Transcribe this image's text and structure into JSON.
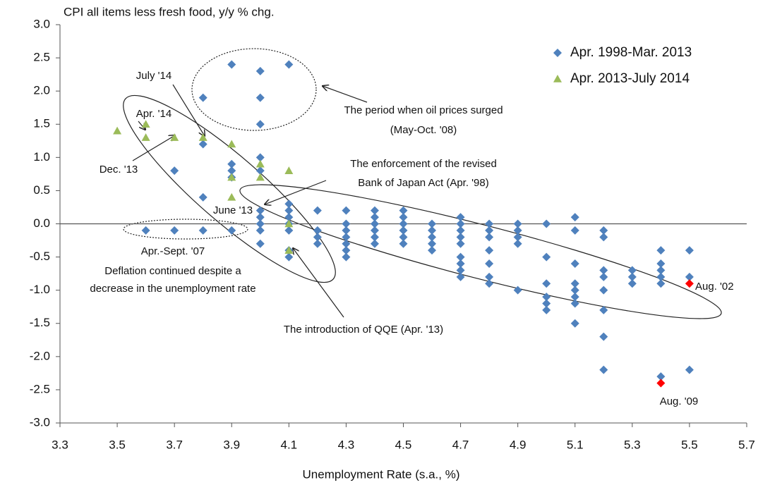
{
  "chart_data": {
    "type": "scatter",
    "title": "CPI all items less fresh food, y/y % chg.",
    "x_label": "Unemployment Rate (s.a., %)",
    "xlim": [
      3.3,
      5.7
    ],
    "xticks": [
      3.3,
      3.5,
      3.7,
      3.9,
      4.1,
      4.3,
      4.5,
      4.7,
      4.9,
      5.1,
      5.3,
      5.5,
      5.7
    ],
    "ylim": [
      -3,
      3
    ],
    "yticks": [
      {
        "value": 3,
        "label": "3.0"
      },
      {
        "value": 2.5,
        "label": "2.5"
      },
      {
        "value": 2,
        "label": "2.0"
      },
      {
        "value": 1.5,
        "label": "1.5"
      },
      {
        "value": 1,
        "label": "1.0"
      },
      {
        "value": 0.5,
        "label": "0.5"
      },
      {
        "value": 0,
        "label": "0.0"
      },
      {
        "value": -0.5,
        "label": "-0.5"
      },
      {
        "value": -1,
        "label": "-1.0"
      },
      {
        "value": -1.5,
        "label": "-1.5"
      },
      {
        "value": -2,
        "label": "-2.0"
      },
      {
        "value": -2.5,
        "label": "-2.5"
      },
      {
        "value": -3,
        "label": "-3.0"
      }
    ],
    "zero_line": true,
    "legend": "top-right",
    "series": [
      {
        "name": "Apr. 1998-Mar. 2013",
        "color": "#4f81bd",
        "marker": "diamond",
        "x": [
          3.6,
          3.7,
          3.7,
          3.8,
          3.8,
          3.8,
          3.8,
          3.9,
          3.9,
          3.9,
          3.9,
          3.9,
          4.0,
          4.0,
          4.0,
          4.0,
          4.0,
          4.0,
          4.0,
          4.0,
          4.0,
          4.0,
          4.1,
          4.1,
          4.1,
          4.1,
          4.1,
          4.1,
          4.1,
          4.1,
          4.2,
          4.2,
          4.2,
          4.2,
          4.3,
          4.3,
          4.3,
          4.3,
          4.3,
          4.3,
          4.3,
          4.4,
          4.4,
          4.4,
          4.4,
          4.4,
          4.4,
          4.5,
          4.5,
          4.5,
          4.5,
          4.5,
          4.5,
          4.6,
          4.6,
          4.6,
          4.6,
          4.6,
          4.7,
          4.7,
          4.7,
          4.7,
          4.7,
          4.7,
          4.7,
          4.7,
          4.7,
          4.8,
          4.8,
          4.8,
          4.8,
          4.8,
          4.8,
          4.8,
          4.9,
          4.9,
          4.9,
          4.9,
          4.9,
          5.0,
          5.0,
          5.0,
          5.0,
          5.0,
          5.0,
          5.1,
          5.1,
          5.1,
          5.1,
          5.1,
          5.1,
          5.1,
          5.1,
          5.2,
          5.2,
          5.2,
          5.2,
          5.2,
          5.2,
          5.2,
          5.2,
          5.3,
          5.3,
          5.3,
          5.4,
          5.4,
          5.4,
          5.4,
          5.4,
          5.4,
          5.5,
          5.5,
          5.5
        ],
        "values": [
          -0.1,
          0.8,
          -0.1,
          1.9,
          1.2,
          0.4,
          -0.1,
          2.4,
          0.9,
          0.8,
          0.7,
          -0.1,
          2.3,
          1.9,
          1.5,
          1.0,
          0.8,
          0.2,
          0.1,
          0,
          -0.1,
          -0.3,
          2.4,
          0.3,
          0.2,
          0.1,
          0,
          -0.1,
          -0.4,
          -0.5,
          0.2,
          -0.1,
          -0.2,
          -0.3,
          0.2,
          0,
          -0.1,
          -0.2,
          -0.3,
          -0.4,
          -0.5,
          0.2,
          0.1,
          0,
          -0.1,
          -0.2,
          -0.3,
          0.2,
          0.1,
          0,
          -0.1,
          -0.2,
          -0.3,
          0,
          -0.1,
          -0.2,
          -0.3,
          -0.4,
          0.1,
          0,
          -0.1,
          -0.2,
          -0.3,
          -0.5,
          -0.6,
          -0.7,
          -0.8,
          0,
          -0.1,
          -0.2,
          -0.4,
          -0.6,
          -0.8,
          -0.9,
          0,
          -0.1,
          -0.2,
          -0.3,
          -1.0,
          0,
          -0.5,
          -0.9,
          -1.1,
          -1.2,
          -1.3,
          0.1,
          -0.1,
          -0.6,
          -0.9,
          -1.0,
          -1.1,
          -1.2,
          -1.5,
          -0.1,
          -0.2,
          -0.7,
          -0.8,
          -1.0,
          -1.3,
          -1.7,
          -2.2,
          -0.7,
          -0.8,
          -0.9,
          -0.4,
          -0.6,
          -0.7,
          -0.8,
          -0.9,
          -2.3,
          -0.4,
          -0.8,
          -2.2
        ]
      },
      {
        "name": "Apr. 2013-July 2014",
        "color": "#9bbb59",
        "marker": "triangle",
        "x": [
          3.5,
          3.6,
          3.6,
          3.7,
          3.8,
          3.9,
          3.9,
          3.9,
          4.0,
          4.0,
          4.1,
          4.1,
          4.1
        ],
        "values": [
          1.4,
          1.5,
          1.3,
          1.3,
          1.3,
          1.2,
          0.7,
          0.4,
          0.9,
          0.7,
          0.8,
          0,
          -0.4
        ]
      },
      {
        "color": "#ff0000",
        "marker": "diamond",
        "x": [
          5.5,
          5.4
        ],
        "values": [
          -0.9,
          -2.4
        ]
      }
    ],
    "annotations": [
      "July '14",
      "Apr. '14",
      "Dec. '13",
      "June '13",
      "The period when oil prices surged",
      "(May-Oct. '08)",
      "The enforcement of the revised",
      "Bank of Japan Act (Apr. '98)",
      "Apr.-Sept. '07",
      "Deflation continued despite a",
      "decrease in the unemployment rate",
      "The introduction of QQE (Apr. '13)",
      "Aug. '02",
      "Aug. '09"
    ]
  }
}
